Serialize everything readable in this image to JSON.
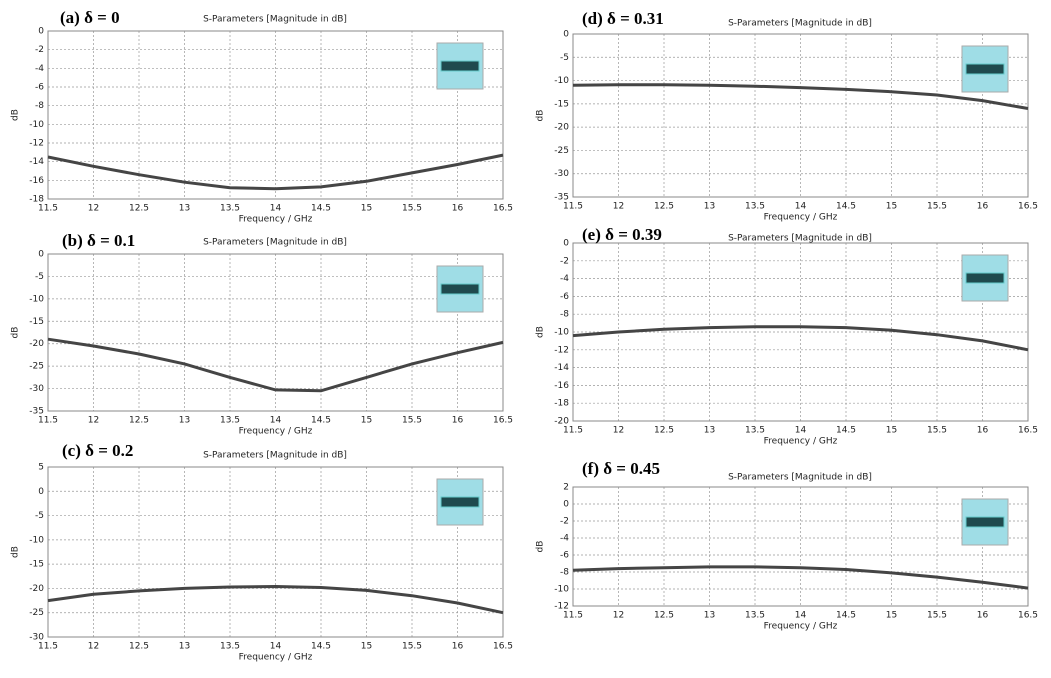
{
  "chart_data": [
    {
      "type": "line",
      "panel_label": "(a) δ = 0",
      "title": "S-Parameters [Magnitude in dB]",
      "xlabel": "Frequency / GHz",
      "ylabel": "dB",
      "x": [
        11.5,
        12,
        12.5,
        13,
        13.5,
        14,
        14.5,
        15,
        15.5,
        16,
        16.5
      ],
      "values": [
        -13.5,
        -14.5,
        -15.4,
        -16.2,
        -16.8,
        -16.9,
        -16.7,
        -16.1,
        -15.2,
        -14.3,
        -13.3
      ],
      "color": "#454545",
      "xlim": [
        11.5,
        16.5
      ],
      "xticks": [
        11.5,
        12,
        12.5,
        13,
        13.5,
        14,
        14.5,
        15,
        15.5,
        16,
        16.5
      ],
      "ylim": [
        -18,
        0
      ],
      "yticks": [
        0,
        -2,
        -4,
        -6,
        -8,
        -10,
        -12,
        -14,
        -16,
        -18
      ],
      "grid": true
    },
    {
      "type": "line",
      "panel_label": "(b) δ = 0.1",
      "title": "S-Parameters [Magnitude in dB]",
      "xlabel": "Frequency / GHz",
      "ylabel": "dB",
      "x": [
        11.5,
        12,
        12.5,
        13,
        13.5,
        14,
        14.5,
        15,
        15.5,
        16,
        16.5
      ],
      "values": [
        -19,
        -20.5,
        -22.3,
        -24.5,
        -27.5,
        -30.3,
        -30.5,
        -27.5,
        -24.5,
        -22,
        -19.7
      ],
      "color": "#454545",
      "xlim": [
        11.5,
        16.5
      ],
      "xticks": [
        11.5,
        12,
        12.5,
        13,
        13.5,
        14,
        14.5,
        15,
        15.5,
        16,
        16.5
      ],
      "ylim": [
        -35,
        0
      ],
      "yticks": [
        0,
        -5,
        -10,
        -15,
        -20,
        -25,
        -30,
        -35
      ],
      "grid": true
    },
    {
      "type": "line",
      "panel_label": "(c) δ = 0.2",
      "title": "S-Parameters [Magnitude in dB]",
      "xlabel": "Frequency / GHz",
      "ylabel": "dB",
      "x": [
        11.5,
        12,
        12.5,
        13,
        13.5,
        14,
        14.5,
        15,
        15.5,
        16,
        16.5
      ],
      "values": [
        -22.5,
        -21.2,
        -20.5,
        -20,
        -19.7,
        -19.6,
        -19.8,
        -20.4,
        -21.5,
        -23,
        -25
      ],
      "color": "#454545",
      "xlim": [
        11.5,
        16.5
      ],
      "xticks": [
        11.5,
        12,
        12.5,
        13,
        13.5,
        14,
        14.5,
        15,
        15.5,
        16,
        16.5
      ],
      "ylim": [
        -30,
        5
      ],
      "yticks": [
        5,
        0,
        -5,
        -10,
        -15,
        -20,
        -25,
        -30
      ],
      "grid": true
    },
    {
      "type": "line",
      "panel_label": "(d) δ = 0.31",
      "title": "S-Parameters [Magnitude in dB]",
      "xlabel": "Frequency / GHz",
      "ylabel": "dB",
      "x": [
        11.5,
        12,
        12.5,
        13,
        13.5,
        14,
        14.5,
        15,
        15.5,
        16,
        16.5
      ],
      "values": [
        -11,
        -10.9,
        -10.9,
        -11,
        -11.2,
        -11.5,
        -11.9,
        -12.4,
        -13.1,
        -14.3,
        -16
      ],
      "color": "#454545",
      "xlim": [
        11.5,
        16.5
      ],
      "xticks": [
        11.5,
        12,
        12.5,
        13,
        13.5,
        14,
        14.5,
        15,
        15.5,
        16,
        16.5
      ],
      "ylim": [
        -35,
        0
      ],
      "yticks": [
        0,
        -5,
        -10,
        -15,
        -20,
        -25,
        -30,
        -35
      ],
      "grid": true
    },
    {
      "type": "line",
      "panel_label": "(e) δ = 0.39",
      "title": "S-Parameters [Magnitude in dB]",
      "xlabel": "Frequency / GHz",
      "ylabel": "dB",
      "x": [
        11.5,
        12,
        12.5,
        13,
        13.5,
        14,
        14.5,
        15,
        15.5,
        16,
        16.5
      ],
      "values": [
        -10.4,
        -10,
        -9.7,
        -9.5,
        -9.4,
        -9.4,
        -9.5,
        -9.8,
        -10.3,
        -11,
        -12
      ],
      "color": "#454545",
      "xlim": [
        11.5,
        16.5
      ],
      "xticks": [
        11.5,
        12,
        12.5,
        13,
        13.5,
        14,
        14.5,
        15,
        15.5,
        16,
        16.5
      ],
      "ylim": [
        -20,
        0
      ],
      "yticks": [
        0,
        -2,
        -4,
        -6,
        -8,
        -10,
        -12,
        -14,
        -16,
        -18,
        -20
      ],
      "grid": true
    },
    {
      "type": "line",
      "panel_label": "(f) δ = 0.45",
      "title": "S-Parameters [Magnitude in dB]",
      "xlabel": "Frequency / GHz",
      "ylabel": "dB",
      "x": [
        11.5,
        12,
        12.5,
        13,
        13.5,
        14,
        14.5,
        15,
        15.5,
        16,
        16.5
      ],
      "values": [
        -7.8,
        -7.6,
        -7.5,
        -7.4,
        -7.4,
        -7.5,
        -7.7,
        -8.1,
        -8.6,
        -9.2,
        -9.9
      ],
      "color": "#454545",
      "xlim": [
        11.5,
        16.5
      ],
      "xticks": [
        11.5,
        12,
        12.5,
        13,
        13.5,
        14,
        14.5,
        15,
        15.5,
        16,
        16.5
      ],
      "ylim": [
        -12,
        2
      ],
      "yticks": [
        2,
        0,
        -2,
        -4,
        -6,
        -8,
        -10,
        -12
      ],
      "grid": true
    }
  ]
}
